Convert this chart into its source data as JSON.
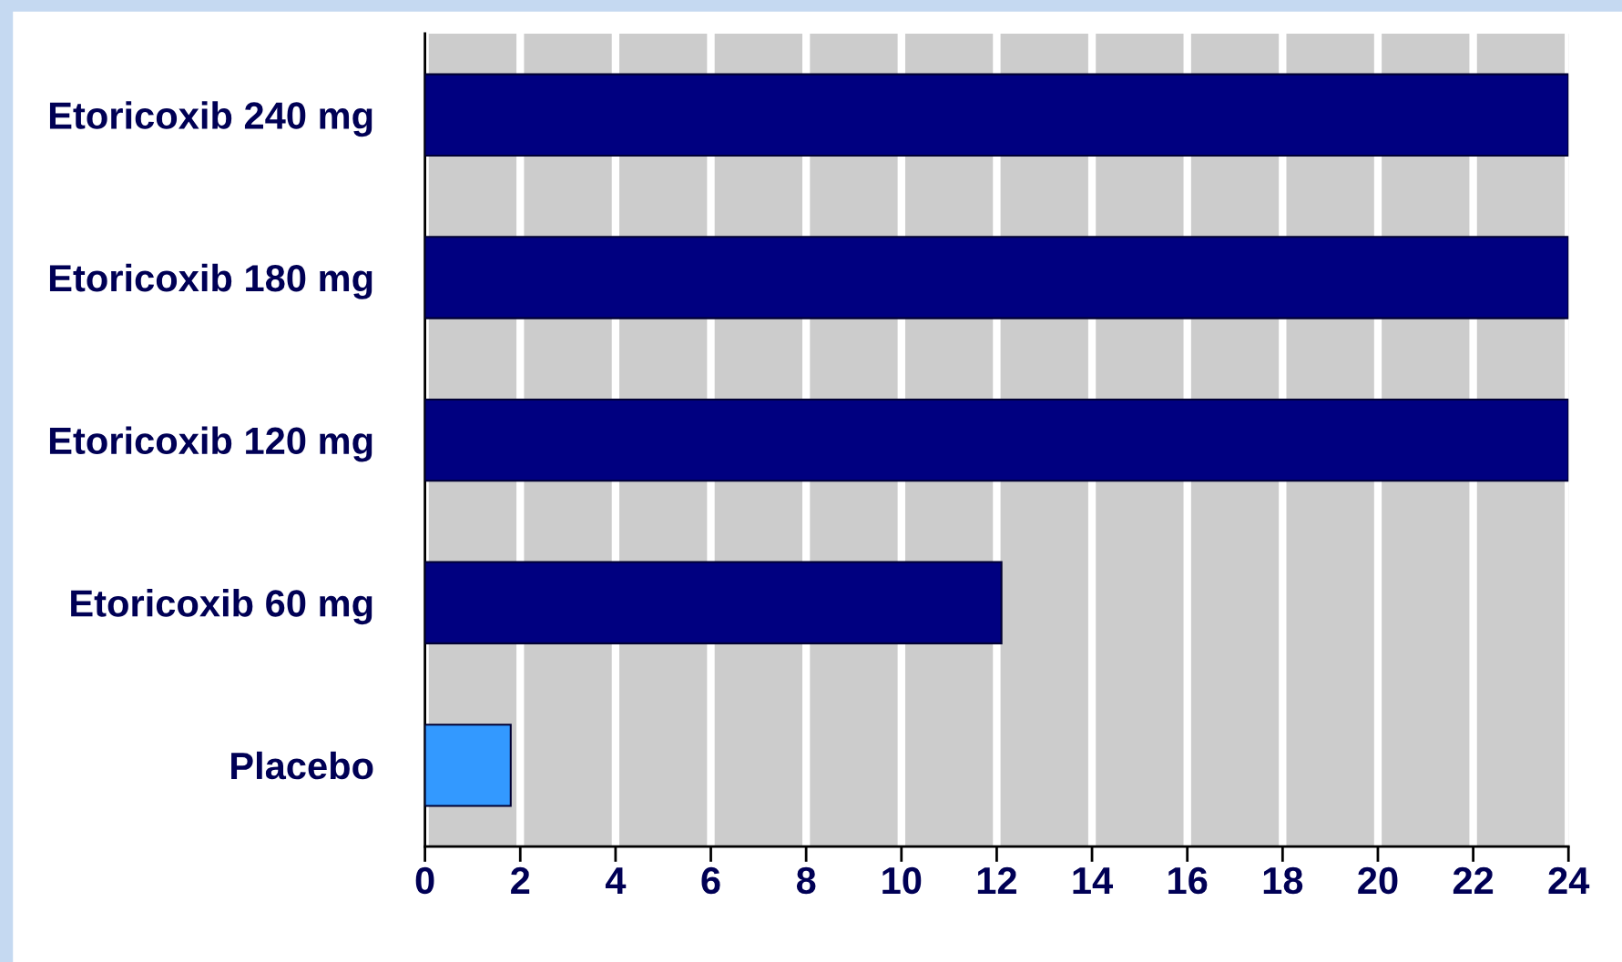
{
  "chart_data": {
    "type": "bar",
    "orientation": "horizontal",
    "categories": [
      "Etoricoxib 240 mg",
      "Etoricoxib 180 mg",
      "Etoricoxib 120 mg",
      "Etoricoxib 60 mg",
      "Placebo"
    ],
    "values": [
      24,
      24,
      24,
      12.1,
      1.8
    ],
    "colors": [
      "#000080",
      "#000080",
      "#000080",
      "#000080",
      "#3399ff"
    ],
    "xlim": [
      0,
      24
    ],
    "xticks": [
      0,
      2,
      4,
      6,
      8,
      10,
      12,
      14,
      16,
      18,
      20,
      22,
      24
    ],
    "grid": "x"
  }
}
